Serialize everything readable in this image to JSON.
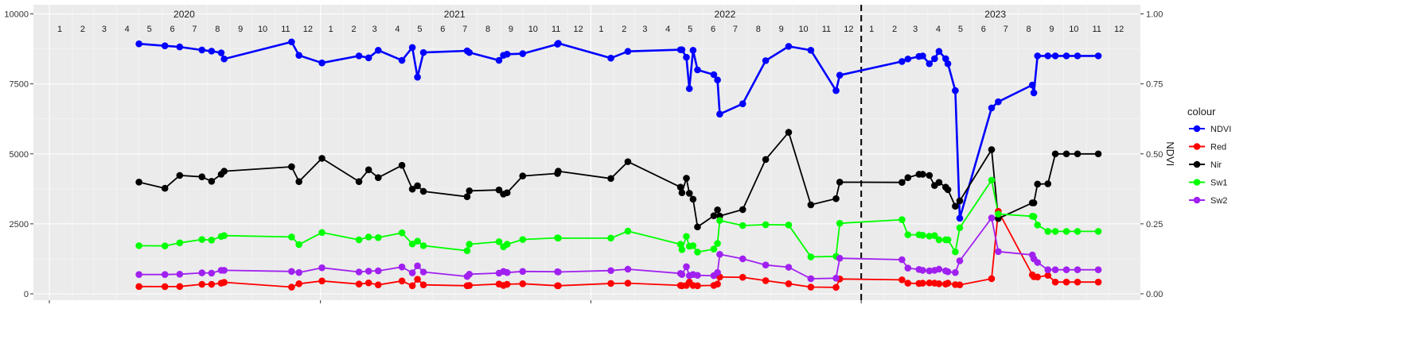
{
  "chart_data": {
    "type": "line",
    "x_axis": {
      "type": "date",
      "start": "2020-01-01",
      "end": "2023-12-31"
    },
    "y_left": {
      "ylim": [
        0,
        10000
      ],
      "ticks": [
        0,
        2500,
        5000,
        7500,
        10000
      ],
      "tick_labels": [
        "0",
        "2500",
        "5000",
        "7500",
        "10000"
      ]
    },
    "y_right": {
      "label": "NDVI",
      "ylim": [
        0,
        1
      ],
      "ticks": [
        0,
        0.25,
        0.5,
        0.75,
        1.0
      ],
      "tick_labels": [
        "0.00",
        "0.25",
        "0.50",
        "0.75",
        "1.00"
      ]
    },
    "years": [
      {
        "label": "2020",
        "center": "2020-07-01"
      },
      {
        "label": "2021",
        "center": "2021-07-01"
      },
      {
        "label": "2022",
        "center": "2022-07-01"
      },
      {
        "label": "2023",
        "center": "2023-07-01"
      }
    ],
    "month_labels": [
      "1",
      "2",
      "3",
      "4",
      "5",
      "6",
      "7",
      "8",
      "9",
      "10",
      "11",
      "12"
    ],
    "vline_date": "2023-01-01",
    "grid": true,
    "legend": {
      "title": "colour",
      "position": "right"
    },
    "colors": {
      "NDVI": "#0000ff",
      "Red": "#ff0000",
      "Nir": "#000000",
      "Sw1": "#00ff00",
      "Sw2": "#a020f0"
    },
    "dates": [
      "2020-05-01",
      "2020-06-05",
      "2020-06-25",
      "2020-07-25",
      "2020-08-07",
      "2020-08-20",
      "2020-08-24",
      "2020-11-23",
      "2020-12-03",
      "2021-01-03",
      "2021-02-22",
      "2021-03-07",
      "2021-03-20",
      "2021-04-21",
      "2021-05-05",
      "2021-05-12",
      "2021-05-20",
      "2021-07-18",
      "2021-07-21",
      "2021-08-30",
      "2021-09-05",
      "2021-09-10",
      "2021-10-01",
      "2021-11-17",
      "2021-11-18",
      "2022-01-28",
      "2022-02-20",
      "2022-05-02",
      "2022-05-04",
      "2022-05-10",
      "2022-05-14",
      "2022-05-19",
      "2022-05-25",
      "2022-06-16",
      "2022-06-21",
      "2022-06-24",
      "2022-07-25",
      "2022-08-25",
      "2022-09-25",
      "2022-10-25",
      "2022-11-28",
      "2022-12-03",
      "2023-02-25",
      "2023-03-05",
      "2023-03-20",
      "2023-03-25",
      "2023-04-03",
      "2023-04-10",
      "2023-04-16",
      "2023-04-25",
      "2023-04-28",
      "2023-05-08",
      "2023-05-14",
      "2023-06-26",
      "2023-07-05",
      "2023-08-20",
      "2023-08-22",
      "2023-08-27",
      "2023-09-10",
      "2023-09-20",
      "2023-10-05",
      "2023-10-20",
      "2023-11-17"
    ],
    "series": [
      {
        "name": "NDVI",
        "axis": "right",
        "values": [
          0.893,
          0.886,
          0.882,
          0.871,
          0.867,
          0.861,
          0.839,
          0.9,
          0.852,
          0.825,
          0.85,
          0.843,
          0.87,
          0.834,
          0.88,
          0.774,
          0.862,
          0.868,
          0.862,
          0.834,
          0.852,
          0.856,
          0.858,
          0.892,
          0.895,
          0.842,
          0.866,
          0.872,
          0.872,
          0.845,
          0.733,
          0.87,
          0.8,
          0.783,
          0.764,
          0.642,
          0.679,
          0.833,
          0.884,
          0.87,
          0.726,
          0.781,
          0.83,
          0.839,
          0.848,
          0.85,
          0.822,
          0.84,
          0.866,
          0.84,
          0.822,
          0.726,
          0.27,
          0.664,
          0.686,
          0.746,
          0.718,
          0.85,
          0.85,
          0.85,
          0.85,
          0.85,
          0.85
        ]
      },
      {
        "name": "Red",
        "values": [
          260,
          258,
          260,
          340,
          340,
          380,
          410,
          240,
          360,
          460,
          350,
          390,
          320,
          460,
          290,
          520,
          320,
          290,
          300,
          350,
          300,
          340,
          360,
          290,
          290,
          370,
          380,
          300,
          290,
          300,
          420,
          300,
          290,
          300,
          350,
          600,
          590,
          470,
          360,
          240,
          230,
          530,
          500,
          380,
          370,
          380,
          390,
          380,
          360,
          350,
          380,
          330,
          320,
          540,
          2950,
          680,
          610,
          600,
          660,
          420,
          420,
          420,
          420
        ]
      },
      {
        "name": "Nir",
        "values": [
          3990,
          3770,
          4230,
          4180,
          4020,
          4270,
          4380,
          4540,
          4010,
          4840,
          4010,
          4430,
          4150,
          4590,
          3740,
          3860,
          3660,
          3470,
          3680,
          3710,
          3560,
          3610,
          4210,
          4300,
          4380,
          4120,
          4720,
          3810,
          3610,
          4130,
          3590,
          3380,
          2390,
          2790,
          3000,
          2780,
          3010,
          4800,
          5770,
          3180,
          3400,
          3990,
          3980,
          4150,
          4270,
          4270,
          4230,
          3870,
          3980,
          3810,
          3720,
          3130,
          3320,
          5150,
          2690,
          3250,
          3250,
          3920,
          3930,
          5000,
          5000,
          5000,
          5000
        ]
      },
      {
        "name": "Sw1",
        "values": [
          1720,
          1710,
          1820,
          1940,
          1920,
          2050,
          2080,
          2030,
          1760,
          2190,
          1930,
          2030,
          2010,
          2180,
          1780,
          1880,
          1720,
          1540,
          1770,
          1860,
          1680,
          1770,
          1940,
          2000,
          1990,
          1990,
          2240,
          1770,
          1580,
          2050,
          1700,
          1720,
          1490,
          1600,
          1800,
          2620,
          2440,
          2470,
          2460,
          1320,
          1340,
          2520,
          2650,
          2110,
          2110,
          2090,
          2060,
          2080,
          1930,
          1930,
          1930,
          1500,
          2360,
          4060,
          2850,
          2770,
          2760,
          2460,
          2230,
          2230,
          2230,
          2230,
          2230
        ]
      },
      {
        "name": "Sw2",
        "values": [
          690,
          690,
          700,
          750,
          740,
          840,
          840,
          800,
          760,
          930,
          780,
          810,
          820,
          960,
          750,
          1000,
          780,
          620,
          700,
          740,
          800,
          760,
          800,
          790,
          780,
          830,
          880,
          730,
          690,
          970,
          650,
          690,
          660,
          650,
          760,
          1410,
          1250,
          1030,
          950,
          540,
          560,
          1270,
          1220,
          920,
          870,
          840,
          820,
          840,
          880,
          820,
          790,
          760,
          1180,
          2710,
          1510,
          1390,
          1250,
          1120,
          860,
          860,
          860,
          860,
          860
        ]
      }
    ]
  }
}
